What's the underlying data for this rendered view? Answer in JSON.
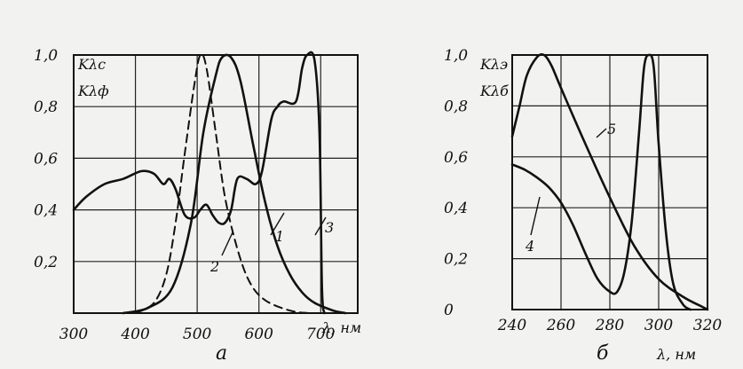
{
  "chart_data": [
    {
      "type": "line",
      "subplot_label": "а",
      "axis_label_lines": [
        "Kλс",
        "Kλф"
      ],
      "xlabel": "λ, нм",
      "xlim": [
        300,
        760
      ],
      "ylim": [
        0,
        1.0
      ],
      "x_ticks": [
        "300",
        "400",
        "500",
        "600",
        "700"
      ],
      "y_ticks": [
        "0,2",
        "0,4",
        "0,6",
        "0,8",
        "1,0"
      ],
      "grid": true,
      "series": [
        {
          "name": "1",
          "style": "solid",
          "points": [
            [
              380,
              0
            ],
            [
              420,
              0.02
            ],
            [
              460,
              0.1
            ],
            [
              490,
              0.35
            ],
            [
              510,
              0.7
            ],
            [
              530,
              0.92
            ],
            [
              540,
              0.99
            ],
            [
              555,
              0.99
            ],
            [
              570,
              0.9
            ],
            [
              590,
              0.66
            ],
            [
              610,
              0.43
            ],
            [
              630,
              0.26
            ],
            [
              650,
              0.15
            ],
            [
              670,
              0.08
            ],
            [
              690,
              0.04
            ],
            [
              720,
              0.01
            ],
            [
              740,
              0
            ]
          ]
        },
        {
          "name": "2",
          "style": "dashed",
          "points": [
            [
              400,
              0
            ],
            [
              430,
              0.04
            ],
            [
              450,
              0.15
            ],
            [
              465,
              0.35
            ],
            [
              480,
              0.62
            ],
            [
              495,
              0.88
            ],
            [
              505,
              1.0
            ],
            [
              515,
              0.95
            ],
            [
              530,
              0.7
            ],
            [
              545,
              0.45
            ],
            [
              565,
              0.25
            ],
            [
              585,
              0.12
            ],
            [
              610,
              0.05
            ],
            [
              650,
              0.01
            ],
            [
              680,
              0
            ]
          ]
        },
        {
          "name": "3",
          "style": "solid",
          "points": [
            [
              300,
              0.4
            ],
            [
              320,
              0.45
            ],
            [
              350,
              0.5
            ],
            [
              380,
              0.52
            ],
            [
              410,
              0.55
            ],
            [
              430,
              0.54
            ],
            [
              445,
              0.5
            ],
            [
              455,
              0.52
            ],
            [
              465,
              0.48
            ],
            [
              480,
              0.38
            ],
            [
              495,
              0.37
            ],
            [
              505,
              0.4
            ],
            [
              515,
              0.42
            ],
            [
              525,
              0.38
            ],
            [
              535,
              0.35
            ],
            [
              545,
              0.35
            ],
            [
              555,
              0.4
            ],
            [
              565,
              0.52
            ],
            [
              580,
              0.52
            ],
            [
              595,
              0.5
            ],
            [
              605,
              0.55
            ],
            [
              620,
              0.75
            ],
            [
              630,
              0.8
            ],
            [
              640,
              0.82
            ],
            [
              660,
              0.82
            ],
            [
              670,
              0.95
            ],
            [
              678,
              1.0
            ],
            [
              690,
              0.98
            ],
            [
              698,
              0.7
            ],
            [
              702,
              0.1
            ],
            [
              706,
              0
            ]
          ]
        }
      ],
      "curve_labels": [
        "1",
        "2",
        "3"
      ]
    },
    {
      "type": "line",
      "subplot_label": "б",
      "axis_label_lines": [
        "Kλэ",
        "Kλб"
      ],
      "xlabel": "λ, нм",
      "xlim": [
        240,
        320
      ],
      "ylim": [
        0,
        1.0
      ],
      "x_ticks": [
        "240",
        "260",
        "280",
        "300",
        "320"
      ],
      "y_ticks": [
        "0",
        "0,2",
        "0,4",
        "0,6",
        "0,8",
        "1,0"
      ],
      "grid": true,
      "series": [
        {
          "name": "4",
          "style": "solid",
          "points": [
            [
              240,
              0.57
            ],
            [
              245,
              0.55
            ],
            [
              250,
              0.52
            ],
            [
              255,
              0.48
            ],
            [
              260,
              0.42
            ],
            [
              265,
              0.33
            ],
            [
              270,
              0.22
            ],
            [
              275,
              0.12
            ],
            [
              280,
              0.07
            ],
            [
              283,
              0.07
            ],
            [
              286,
              0.15
            ],
            [
              289,
              0.35
            ],
            [
              292,
              0.7
            ],
            [
              294,
              0.95
            ],
            [
              296,
              1.0
            ],
            [
              298,
              0.95
            ],
            [
              300,
              0.65
            ],
            [
              303,
              0.3
            ],
            [
              306,
              0.1
            ],
            [
              310,
              0.02
            ],
            [
              313,
              0
            ]
          ]
        },
        {
          "name": "5",
          "style": "solid",
          "points": [
            [
              240,
              0.68
            ],
            [
              243,
              0.8
            ],
            [
              246,
              0.92
            ],
            [
              250,
              0.99
            ],
            [
              253,
              1.0
            ],
            [
              256,
              0.96
            ],
            [
              260,
              0.87
            ],
            [
              270,
              0.65
            ],
            [
              280,
              0.44
            ],
            [
              290,
              0.25
            ],
            [
              300,
              0.12
            ],
            [
              310,
              0.05
            ],
            [
              318,
              0.01
            ],
            [
              320,
              0
            ]
          ]
        }
      ],
      "curve_labels": [
        "4",
        "5"
      ]
    }
  ]
}
